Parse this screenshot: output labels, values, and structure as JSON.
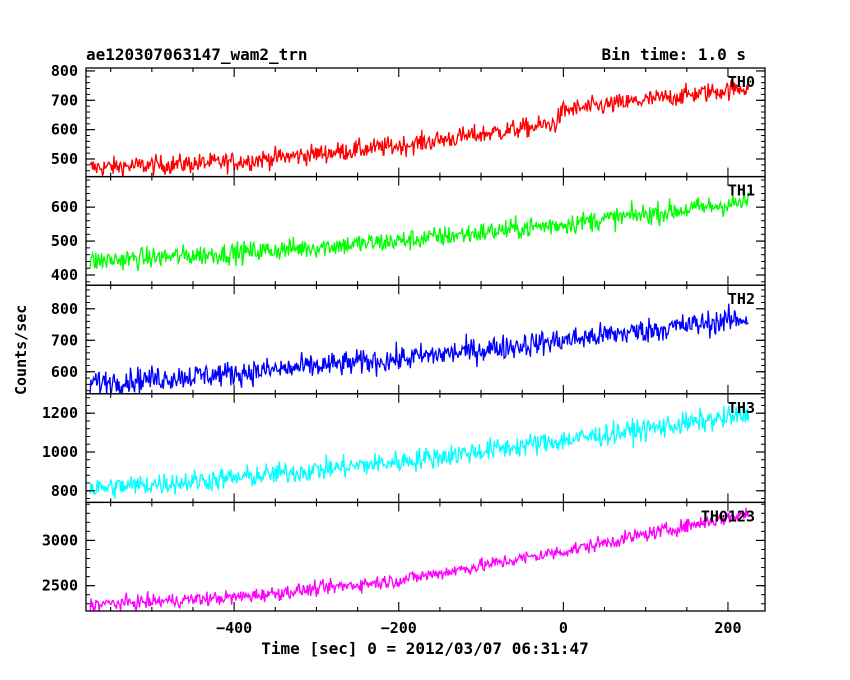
{
  "header": {
    "title": "ae120307063147_wam2_trn",
    "bin_time": "Bin time: 1.0 s"
  },
  "chart_data": {
    "type": "line",
    "title": "ae120307063147_wam2_trn",
    "subtitle": "Bin time: 1.0 s",
    "xlabel": "Time [sec] 0 = 2012/03/07 06:31:47",
    "ylabel": "Counts/sec",
    "xlim": [
      -580,
      245
    ],
    "x_ticks": [
      -400,
      -200,
      0,
      200
    ],
    "x_tick_labels": [
      "−400",
      "−200",
      "0",
      "200"
    ],
    "data_x_range": [
      -575,
      225
    ],
    "bin_seconds": 1.0,
    "panels": [
      {
        "name": "TH0",
        "color": "#ff0000",
        "ylim": [
          440,
          810
        ],
        "y_ticks": [
          500,
          600,
          700,
          800
        ],
        "trend": [
          [
            -575,
            470
          ],
          [
            -400,
            490
          ],
          [
            -200,
            545
          ],
          [
            -10,
            620
          ],
          [
            0,
            665
          ],
          [
            100,
            700
          ],
          [
            225,
            745
          ]
        ],
        "noise_amplitude": 32
      },
      {
        "name": "TH1",
        "color": "#00ff00",
        "ylim": [
          370,
          690
        ],
        "y_ticks": [
          400,
          500,
          600
        ],
        "trend": [
          [
            -575,
            440
          ],
          [
            -400,
            465
          ],
          [
            -200,
            500
          ],
          [
            0,
            550
          ],
          [
            225,
            615
          ]
        ],
        "noise_amplitude": 30
      },
      {
        "name": "TH2",
        "color": "#0000ff",
        "ylim": [
          530,
          875
        ],
        "y_ticks": [
          600,
          700,
          800
        ],
        "trend": [
          [
            -575,
            565
          ],
          [
            -400,
            595
          ],
          [
            -200,
            640
          ],
          [
            0,
            700
          ],
          [
            225,
            770
          ]
        ],
        "noise_amplitude": 38
      },
      {
        "name": "TH3",
        "color": "#00ffff",
        "ylim": [
          740,
          1300
        ],
        "y_ticks": [
          800,
          1000,
          1200
        ],
        "trend": [
          [
            -575,
            810
          ],
          [
            -400,
            865
          ],
          [
            -200,
            950
          ],
          [
            0,
            1060
          ],
          [
            225,
            1190
          ]
        ],
        "noise_amplitude": 55
      },
      {
        "name": "TH0123",
        "color": "#ff00ff",
        "ylim": [
          2220,
          3420
        ],
        "y_ticks": [
          2500,
          3000
        ],
        "trend": [
          [
            -575,
            2290
          ],
          [
            -400,
            2370
          ],
          [
            -200,
            2560
          ],
          [
            0,
            2880
          ],
          [
            225,
            3300
          ]
        ],
        "noise_amplitude": 75
      }
    ]
  }
}
